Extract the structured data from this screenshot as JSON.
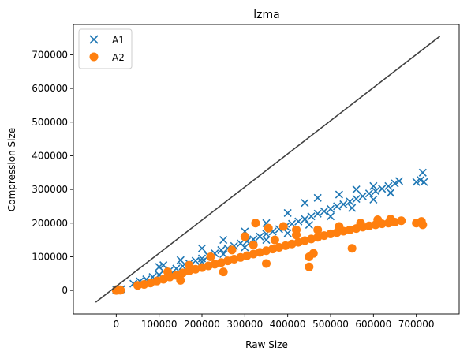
{
  "chart_data": {
    "type": "scatter",
    "title": "lzma",
    "xlabel": "Raw Size",
    "ylabel": "Compression Size",
    "xlim": [
      -100000,
      800000
    ],
    "ylim": [
      -70000,
      790000
    ],
    "xticks": [
      0,
      100000,
      200000,
      300000,
      400000,
      500000,
      600000,
      700000
    ],
    "yticks": [
      0,
      100000,
      200000,
      300000,
      400000,
      500000,
      600000,
      700000
    ],
    "xtick_labels": [
      "0",
      "100000",
      "200000",
      "300000",
      "400000",
      "500000",
      "600000",
      "700000"
    ],
    "ytick_labels": [
      "0",
      "100000",
      "200000",
      "300000",
      "400000",
      "500000",
      "600000",
      "700000"
    ],
    "grid": false,
    "legend_position": "top-left",
    "reference_line": {
      "x": [
        -48000,
        755000
      ],
      "y": [
        -35000,
        755000
      ],
      "color": "#404040"
    },
    "series": [
      {
        "name": "A1",
        "marker": "x",
        "color": "#1f77b4",
        "points": [
          [
            0,
            1000
          ],
          [
            3000,
            3000
          ],
          [
            6000,
            500
          ],
          [
            9000,
            2500
          ],
          [
            12000,
            4000
          ],
          [
            40000,
            20000
          ],
          [
            55000,
            27000
          ],
          [
            70000,
            33000
          ],
          [
            85000,
            40000
          ],
          [
            100000,
            46000
          ],
          [
            110000,
            75000
          ],
          [
            125000,
            60000
          ],
          [
            140000,
            65000
          ],
          [
            155000,
            72000
          ],
          [
            170000,
            80000
          ],
          [
            185000,
            88000
          ],
          [
            200000,
            95000
          ],
          [
            215000,
            103000
          ],
          [
            230000,
            110000
          ],
          [
            245000,
            120000
          ],
          [
            260000,
            125000
          ],
          [
            275000,
            132000
          ],
          [
            290000,
            140000
          ],
          [
            305000,
            146000
          ],
          [
            320000,
            152000
          ],
          [
            335000,
            160000
          ],
          [
            350000,
            168000
          ],
          [
            365000,
            175000
          ],
          [
            380000,
            182000
          ],
          [
            395000,
            190000
          ],
          [
            410000,
            198000
          ],
          [
            425000,
            205000
          ],
          [
            440000,
            212000
          ],
          [
            455000,
            220000
          ],
          [
            470000,
            228000
          ],
          [
            485000,
            235000
          ],
          [
            500000,
            242000
          ],
          [
            515000,
            250000
          ],
          [
            530000,
            256000
          ],
          [
            545000,
            264000
          ],
          [
            560000,
            272000
          ],
          [
            575000,
            280000
          ],
          [
            590000,
            288000
          ],
          [
            605000,
            295000
          ],
          [
            620000,
            302000
          ],
          [
            635000,
            310000
          ],
          [
            650000,
            318000
          ],
          [
            660000,
            325000
          ],
          [
            700000,
            322000
          ],
          [
            710000,
            328000
          ],
          [
            715000,
            350000
          ],
          [
            718000,
            322000
          ],
          [
            100000,
            70000
          ],
          [
            150000,
            90000
          ],
          [
            200000,
            125000
          ],
          [
            250000,
            150000
          ],
          [
            300000,
            175000
          ],
          [
            350000,
            200000
          ],
          [
            400000,
            230000
          ],
          [
            440000,
            260000
          ],
          [
            470000,
            275000
          ],
          [
            520000,
            285000
          ],
          [
            560000,
            300000
          ],
          [
            600000,
            310000
          ],
          [
            200000,
            85000
          ],
          [
            250000,
            108000
          ],
          [
            300000,
            128000
          ],
          [
            350000,
            150000
          ],
          [
            400000,
            170000
          ],
          [
            450000,
            195000
          ],
          [
            500000,
            220000
          ],
          [
            550000,
            245000
          ],
          [
            600000,
            270000
          ],
          [
            640000,
            290000
          ]
        ]
      },
      {
        "name": "A2",
        "marker": "o",
        "color": "#ff7f0e",
        "points": [
          [
            0,
            0
          ],
          [
            2000,
            3000
          ],
          [
            5000,
            1000
          ],
          [
            8000,
            2000
          ],
          [
            10000,
            500
          ],
          [
            50000,
            15000
          ],
          [
            65000,
            18000
          ],
          [
            80000,
            22000
          ],
          [
            95000,
            28000
          ],
          [
            110000,
            33000
          ],
          [
            125000,
            40000
          ],
          [
            140000,
            45000
          ],
          [
            155000,
            52000
          ],
          [
            170000,
            58000
          ],
          [
            185000,
            63000
          ],
          [
            200000,
            68000
          ],
          [
            215000,
            73000
          ],
          [
            230000,
            78000
          ],
          [
            245000,
            83000
          ],
          [
            260000,
            88000
          ],
          [
            275000,
            93000
          ],
          [
            290000,
            98000
          ],
          [
            305000,
            103000
          ],
          [
            320000,
            108000
          ],
          [
            335000,
            113000
          ],
          [
            350000,
            118000
          ],
          [
            365000,
            123000
          ],
          [
            380000,
            128000
          ],
          [
            395000,
            133000
          ],
          [
            410000,
            138000
          ],
          [
            425000,
            143000
          ],
          [
            440000,
            148000
          ],
          [
            455000,
            153000
          ],
          [
            470000,
            158000
          ],
          [
            485000,
            163000
          ],
          [
            500000,
            168000
          ],
          [
            515000,
            172000
          ],
          [
            530000,
            176000
          ],
          [
            545000,
            180000
          ],
          [
            560000,
            184000
          ],
          [
            575000,
            188000
          ],
          [
            590000,
            192000
          ],
          [
            605000,
            195000
          ],
          [
            620000,
            198000
          ],
          [
            635000,
            200000
          ],
          [
            650000,
            203000
          ],
          [
            665000,
            207000
          ],
          [
            700000,
            200000
          ],
          [
            712000,
            205000
          ],
          [
            715000,
            195000
          ],
          [
            120000,
            55000
          ],
          [
            170000,
            75000
          ],
          [
            220000,
            100000
          ],
          [
            270000,
            120000
          ],
          [
            320000,
            135000
          ],
          [
            370000,
            150000
          ],
          [
            420000,
            165000
          ],
          [
            470000,
            180000
          ],
          [
            520000,
            190000
          ],
          [
            570000,
            200000
          ],
          [
            610000,
            210000
          ],
          [
            640000,
            212000
          ],
          [
            150000,
            30000
          ],
          [
            250000,
            55000
          ],
          [
            350000,
            80000
          ],
          [
            450000,
            100000
          ],
          [
            550000,
            125000
          ],
          [
            300000,
            160000
          ],
          [
            325000,
            200000
          ],
          [
            355000,
            185000
          ],
          [
            390000,
            190000
          ],
          [
            420000,
            180000
          ],
          [
            450000,
            70000
          ],
          [
            460000,
            110000
          ]
        ]
      }
    ]
  }
}
